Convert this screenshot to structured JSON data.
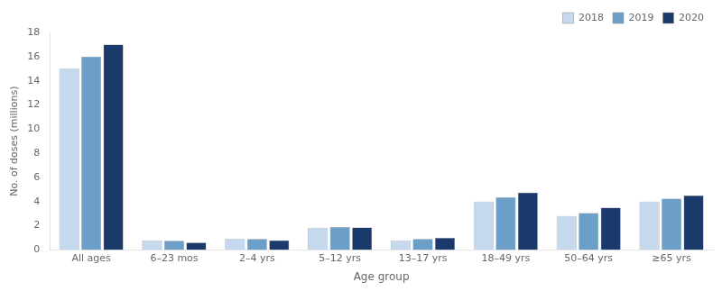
{
  "chart_data": {
    "type": "bar",
    "categories": [
      "All ages",
      "6–23 mos",
      "2–4 yrs",
      "5–12 yrs",
      "13–17 yrs",
      "18–49 yrs",
      "50–64 yrs",
      "≥65 yrs"
    ],
    "series": [
      {
        "name": "2018",
        "color": "#c5d8ed",
        "values": [
          15.0,
          0.8,
          0.9,
          1.8,
          0.8,
          4.0,
          2.8,
          4.0
        ]
      },
      {
        "name": "2019",
        "color": "#6b9fc8",
        "values": [
          16.0,
          0.75,
          0.9,
          1.9,
          0.9,
          4.35,
          3.05,
          4.25
        ]
      },
      {
        "name": "2020",
        "color": "#1a3a6b",
        "values": [
          17.0,
          0.6,
          0.8,
          1.85,
          1.0,
          4.75,
          3.5,
          4.5
        ]
      }
    ],
    "xlabel": "Age group",
    "ylabel": "No. of doses (millions)",
    "ylim": [
      0,
      18
    ],
    "yticks": [
      0,
      2,
      4,
      6,
      8,
      10,
      12,
      14,
      16,
      18
    ],
    "grid": false,
    "legend": "upper right"
  }
}
